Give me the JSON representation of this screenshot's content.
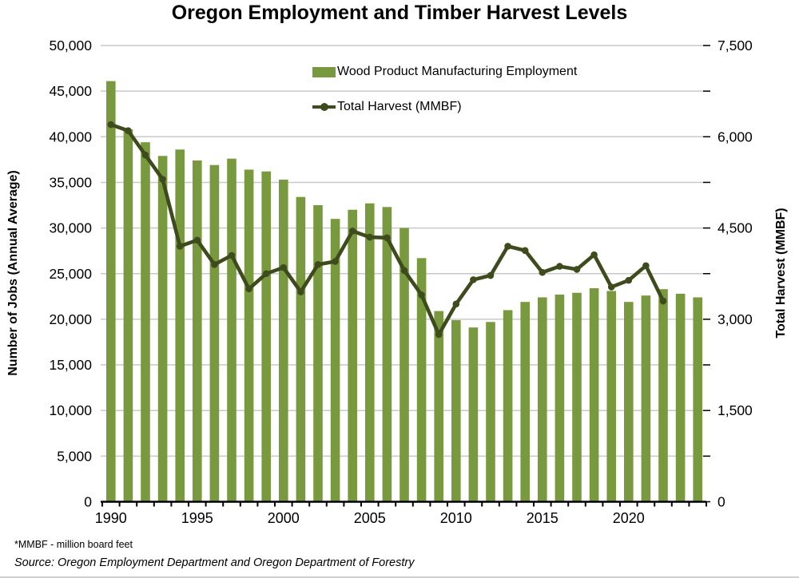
{
  "chart_data": {
    "type": "combo-bar-line",
    "title": "Oregon Employment and Timber Harvest Levels",
    "x": [
      1990,
      1991,
      1992,
      1993,
      1994,
      1995,
      1996,
      1997,
      1998,
      1999,
      2000,
      2001,
      2002,
      2003,
      2004,
      2005,
      2006,
      2007,
      2008,
      2009,
      2010,
      2011,
      2012,
      2013,
      2014,
      2015,
      2016,
      2017,
      2018,
      2019,
      2020,
      2021,
      2022,
      2023,
      2024
    ],
    "series": [
      {
        "name": "Wood Product Manufacturing Employment",
        "type": "bar",
        "axis": "left",
        "values": [
          46100,
          40800,
          39400,
          37900,
          38600,
          37400,
          36900,
          37600,
          36400,
          36200,
          35300,
          33400,
          32500,
          31000,
          32000,
          32700,
          32300,
          30000,
          26700,
          20900,
          19900,
          19100,
          19700,
          21000,
          21900,
          22400,
          22700,
          22900,
          23400,
          23100,
          21900,
          22600,
          23300,
          22800,
          22400
        ]
      },
      {
        "name": "Total Harvest (MMBF)",
        "type": "line",
        "axis": "right",
        "values": [
          6200,
          6100,
          5700,
          5300,
          4200,
          4300,
          3900,
          4050,
          3500,
          3750,
          3850,
          3450,
          3900,
          3950,
          4450,
          4350,
          4340,
          3800,
          3400,
          2750,
          3250,
          3650,
          3720,
          4200,
          4130,
          3770,
          3870,
          3820,
          4060,
          3530,
          3640,
          3880,
          3300,
          null,
          null
        ]
      }
    ],
    "left_axis": {
      "label": "Number of Jobs (Annual Average)",
      "min": 0,
      "max": 50000,
      "tick_step": 5000
    },
    "right_axis": {
      "label": "Total Harvest (MMBF)",
      "min": 0,
      "max": 7500,
      "tick_step": 1500,
      "minor_tick_step": 750
    },
    "x_axis": {
      "labeled_years": [
        1990,
        1995,
        2000,
        2005,
        2010,
        2015,
        2020
      ],
      "label_interval": 5
    },
    "legend_position": "inside-top-center",
    "grid": "horizontal",
    "colors": {
      "bar": "#79993E",
      "line": "#3E4B1D",
      "gridline": "#C9C9C9",
      "axis": "#000000",
      "text": "#000000"
    },
    "footnote": "*MMBF - million board feet",
    "source": "Source: Oregon Employment Department and Oregon Department of Forestry"
  }
}
